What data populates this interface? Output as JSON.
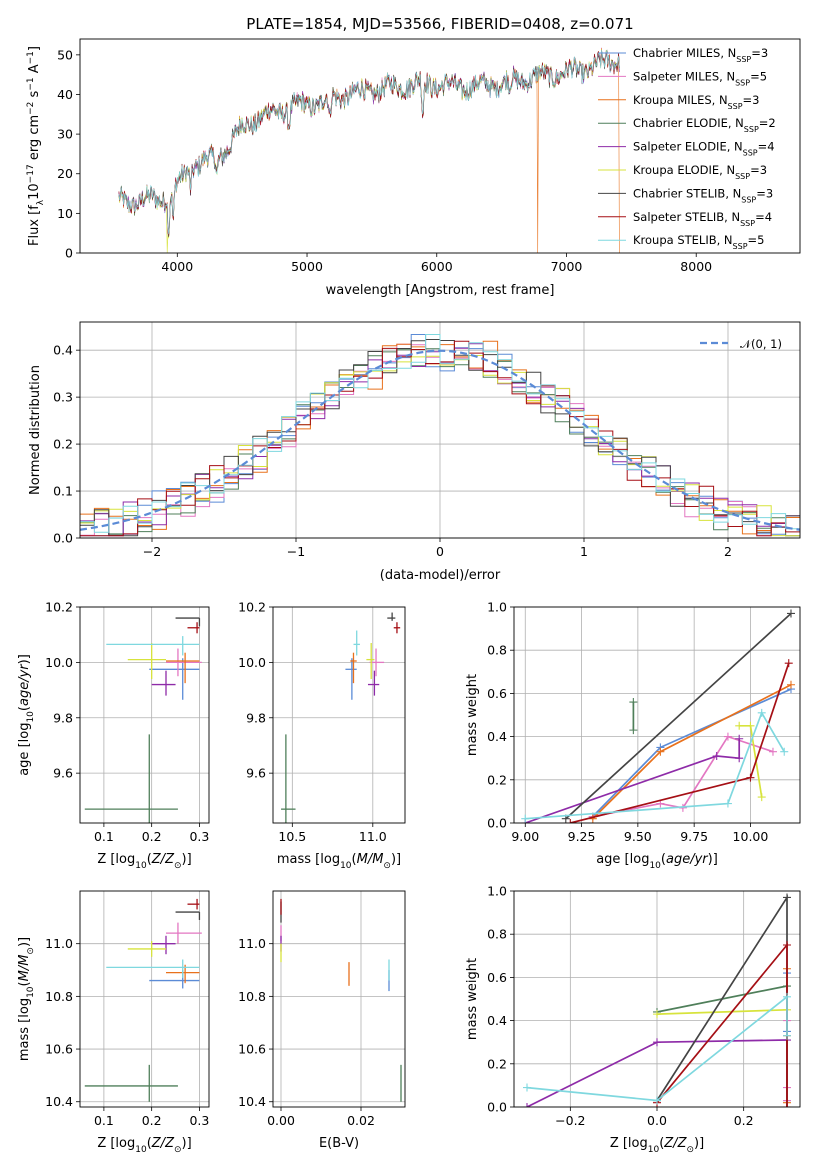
{
  "figure_title": "PLATE=1854, MJD=53566, FIBERID=0408, z=0.071",
  "colors": {
    "chabrier_miles": "#5b8bd6",
    "salpeter_miles": "#e377c2",
    "kroupa_miles": "#e8711c",
    "chabrier_elodie": "#4f7f5a",
    "salpeter_elodie": "#8e2ba8",
    "kroupa_elodie": "#d7e33c",
    "chabrier_stelib": "#444444",
    "salpeter_stelib": "#a50f15",
    "kroupa_stelib": "#7fd8df",
    "gauss": "#5b8bd6"
  },
  "chart_data": [
    {
      "id": "spectrum",
      "type": "line",
      "title": "PLATE=1854, MJD=53566, FIBERID=0408, z=0.071",
      "xlabel": "wavelength [Angstrom, rest frame]",
      "ylabel": "Flux [f_λ 10^-17 erg cm^-2 s^-1 A^-1]",
      "xlim": [
        3250,
        8800
      ],
      "ylim": [
        0,
        54
      ],
      "xticks": [
        "4000",
        "5000",
        "6000",
        "7000",
        "8000"
      ],
      "yticks": [
        "0",
        "10",
        "20",
        "30",
        "40",
        "50"
      ],
      "grid": false,
      "legend": "right",
      "legend_entries": [
        {
          "label": "Chabrier MILES, N",
          "sub": "SSP",
          "rest": "=3"
        },
        {
          "label": "Salpeter MILES, N",
          "sub": "SSP",
          "rest": "=5"
        },
        {
          "label": "Kroupa MILES, N",
          "sub": "SSP",
          "rest": "=3"
        },
        {
          "label": "Chabrier ELODIE, N",
          "sub": "SSP",
          "rest": "=2"
        },
        {
          "label": "Salpeter ELODIE, N",
          "sub": "SSP",
          "rest": "=4"
        },
        {
          "label": "Kroupa ELODIE, N",
          "sub": "SSP",
          "rest": "=3"
        },
        {
          "label": "Chabrier STELIB, N",
          "sub": "SSP",
          "rest": "=3"
        },
        {
          "label": "Salpeter STELIB, N",
          "sub": "SSP",
          "rest": "=4"
        },
        {
          "label": "Kroupa STELIB, N",
          "sub": "SSP",
          "rest": "=5"
        }
      ],
      "continuum_wavelength": [
        3550,
        3700,
        3900,
        4000,
        4100,
        4200,
        4300,
        4400,
        4500,
        4700,
        4900,
        5100,
        5300,
        5500,
        5700,
        5900,
        6100,
        6300,
        6500,
        6700,
        6900,
        7100,
        7300,
        7400
      ],
      "continuum_flux": [
        13,
        13,
        14,
        17,
        22,
        23,
        24,
        27,
        32,
        35,
        37,
        38,
        40,
        41,
        42,
        43,
        42,
        42,
        43,
        44,
        45,
        46,
        48,
        49
      ],
      "absorption_lines": [
        [
          3934,
          9
        ],
        [
          3969,
          8
        ],
        [
          4102,
          5
        ],
        [
          4305,
          4
        ],
        [
          4861,
          4
        ],
        [
          5175,
          6
        ],
        [
          5892,
          9
        ],
        [
          6563,
          3
        ]
      ],
      "drops": [
        {
          "x": 3920,
          "series": "kroupa_elodie"
        },
        {
          "x": 6780,
          "series": "kroupa_miles"
        },
        {
          "x": 7410,
          "series": "kroupa_miles"
        }
      ]
    },
    {
      "id": "residuals",
      "type": "histogram",
      "xlabel": "(data-model)/error",
      "ylabel": "Normed distribution",
      "xlim": [
        -2.5,
        2.5
      ],
      "ylim": [
        0,
        0.46
      ],
      "xticks": [
        "−2",
        "−1",
        "0",
        "1",
        "2"
      ],
      "yticks": [
        "0.0",
        "0.1",
        "0.2",
        "0.3",
        "0.4"
      ],
      "grid": true,
      "legend": "top-right",
      "gauss_label": "𝒩(0, 1)",
      "bin_width": 0.1
    },
    {
      "id": "age_vs_Z",
      "type": "scatter_errorbar",
      "xlabel": "Z [log10(Z/Z☉)]",
      "ylabel": "age [log10(age/yr)]",
      "xlim": [
        0.05,
        0.32
      ],
      "ylim": [
        9.42,
        10.2
      ],
      "xticks": [
        "0.1",
        "0.2",
        "0.3"
      ],
      "yticks": [
        "9.6",
        "9.8",
        "10.0",
        "10.2"
      ],
      "grid": true,
      "points": [
        {
          "s": "chabrier_miles",
          "x": 0.265,
          "y": 9.975,
          "xe": [
            0.07,
            0.035
          ],
          "ye": [
            0.11,
            0.04
          ]
        },
        {
          "s": "salpeter_miles",
          "x": 0.255,
          "y": 10.0,
          "xe": [
            0.025,
            0.05
          ],
          "ye": [
            0.05,
            0.05
          ]
        },
        {
          "s": "kroupa_miles",
          "x": 0.27,
          "y": 10.005,
          "xe": [
            0.04,
            0.03
          ],
          "ye": [
            0.08,
            0.03
          ]
        },
        {
          "s": "chabrier_elodie",
          "x": 0.195,
          "y": 9.47,
          "xe": [
            0.135,
            0.06
          ],
          "ye": [
            0.05,
            0.27
          ]
        },
        {
          "s": "salpeter_elodie",
          "x": 0.23,
          "y": 9.92,
          "xe": [
            0.03,
            0.02
          ],
          "ye": [
            0.04,
            0.05
          ]
        },
        {
          "s": "kroupa_elodie",
          "x": 0.2,
          "y": 10.01,
          "xe": [
            0.05,
            0.03
          ],
          "ye": [
            0.07,
            0.06
          ]
        },
        {
          "s": "chabrier_stelib",
          "x": 0.3,
          "y": 10.16,
          "xe": [
            0.05,
            0.0
          ],
          "ye": [
            0.03,
            0.0
          ]
        },
        {
          "s": "salpeter_stelib",
          "x": 0.295,
          "y": 10.125,
          "xe": [
            0.02,
            0.005
          ],
          "ye": [
            0.02,
            0.02
          ]
        },
        {
          "s": "kroupa_stelib",
          "x": 0.265,
          "y": 10.065,
          "xe": [
            0.16,
            0.035
          ],
          "ye": [
            0.04,
            0.03
          ]
        }
      ]
    },
    {
      "id": "age_vs_mass",
      "type": "scatter_errorbar",
      "xlabel": "mass [log10(M/M☉)]",
      "ylabel": "",
      "xlim": [
        10.38,
        11.2
      ],
      "ylim": [
        9.42,
        10.2
      ],
      "xticks": [
        "10.5",
        "11.0"
      ],
      "yticks": [
        "9.6",
        "9.8",
        "10.0",
        "10.2"
      ],
      "grid": true,
      "points": [
        {
          "s": "chabrier_miles",
          "x": 10.87,
          "y": 9.975,
          "xe": [
            0.04,
            0.03
          ],
          "ye": [
            0.11,
            0.04
          ]
        },
        {
          "s": "salpeter_miles",
          "x": 11.02,
          "y": 10.0,
          "xe": [
            0.04,
            0.05
          ],
          "ye": [
            0.05,
            0.05
          ]
        },
        {
          "s": "kroupa_miles",
          "x": 10.88,
          "y": 10.005,
          "xe": [
            0.02,
            0.02
          ],
          "ye": [
            0.08,
            0.03
          ]
        },
        {
          "s": "chabrier_elodie",
          "x": 10.46,
          "y": 9.47,
          "xe": [
            0.03,
            0.06
          ],
          "ye": [
            0.05,
            0.27
          ]
        },
        {
          "s": "salpeter_elodie",
          "x": 11.01,
          "y": 9.92,
          "xe": [
            0.04,
            0.03
          ],
          "ye": [
            0.04,
            0.05
          ]
        },
        {
          "s": "kroupa_elodie",
          "x": 10.99,
          "y": 10.01,
          "xe": [
            0.03,
            0.02
          ],
          "ye": [
            0.07,
            0.06
          ]
        },
        {
          "s": "chabrier_stelib",
          "x": 11.12,
          "y": 10.16,
          "xe": [
            0.03,
            0.02
          ],
          "ye": [
            0.01,
            0.02
          ]
        },
        {
          "s": "salpeter_stelib",
          "x": 11.15,
          "y": 10.125,
          "xe": [
            0.02,
            0.02
          ],
          "ye": [
            0.02,
            0.02
          ]
        },
        {
          "s": "kroupa_stelib",
          "x": 10.9,
          "y": 10.065,
          "xe": [
            0.02,
            0.02
          ],
          "ye": [
            0.04,
            0.05
          ]
        }
      ]
    },
    {
      "id": "weight_vs_age",
      "type": "line",
      "xlabel": "age [log10(age/yr)]",
      "ylabel": "mass weight",
      "xlim": [
        8.95,
        10.22
      ],
      "ylim": [
        0,
        1
      ],
      "xticks": [
        "9.00",
        "9.25",
        "9.50",
        "9.75",
        "10.00"
      ],
      "yticks": [
        "0.0",
        "0.2",
        "0.4",
        "0.6",
        "0.8",
        "1.0"
      ],
      "grid": true,
      "series": [
        {
          "s": "chabrier_miles",
          "x": [
            9.3,
            9.6,
            10.18
          ],
          "y": [
            0.03,
            0.35,
            0.62
          ]
        },
        {
          "s": "salpeter_miles",
          "x": [
            9.3,
            9.6,
            9.7,
            9.9,
            10.1
          ],
          "y": [
            0.03,
            0.09,
            0.07,
            0.4,
            0.33
          ]
        },
        {
          "s": "kroupa_miles",
          "x": [
            9.3,
            9.6,
            10.18
          ],
          "y": [
            0.02,
            0.33,
            0.64
          ]
        },
        {
          "s": "chabrier_elodie",
          "x": [
            9.48,
            9.48
          ],
          "y": [
            0.43,
            0.56
          ]
        },
        {
          "s": "salpeter_elodie",
          "x": [
            9.0,
            9.85,
            9.95,
            9.95
          ],
          "y": [
            0.0,
            0.31,
            0.3,
            0.39
          ]
        },
        {
          "s": "kroupa_elodie",
          "x": [
            9.95,
            10.0,
            10.05
          ],
          "y": [
            0.45,
            0.45,
            0.12
          ]
        },
        {
          "s": "chabrier_stelib",
          "x": [
            9.18,
            10.18
          ],
          "y": [
            0.02,
            0.97
          ]
        },
        {
          "s": "salpeter_stelib",
          "x": [
            9.2,
            10.0,
            10.17
          ],
          "y": [
            0.0,
            0.21,
            0.74
          ]
        },
        {
          "s": "kroupa_stelib",
          "x": [
            9.0,
            9.9,
            10.05,
            10.15
          ],
          "y": [
            0.02,
            0.09,
            0.51,
            0.33
          ]
        }
      ]
    },
    {
      "id": "mass_vs_Z",
      "type": "scatter_errorbar",
      "xlabel": "Z [log10(Z/Z☉)]",
      "ylabel": "mass [log10(M/M☉)]",
      "xlim": [
        0.05,
        0.32
      ],
      "ylim": [
        10.38,
        11.2
      ],
      "xticks": [
        "0.1",
        "0.2",
        "0.3"
      ],
      "yticks": [
        "10.4",
        "10.6",
        "10.8",
        "11.0"
      ],
      "grid": true,
      "points": [
        {
          "s": "chabrier_miles",
          "x": 0.265,
          "y": 10.86,
          "xe": [
            0.07,
            0.035
          ],
          "ye": [
            0.03,
            0.04
          ]
        },
        {
          "s": "salpeter_miles",
          "x": 0.255,
          "y": 11.04,
          "xe": [
            0.025,
            0.05
          ],
          "ye": [
            0.04,
            0.04
          ]
        },
        {
          "s": "kroupa_miles",
          "x": 0.27,
          "y": 10.89,
          "xe": [
            0.04,
            0.03
          ],
          "ye": [
            0.04,
            0.03
          ]
        },
        {
          "s": "chabrier_elodie",
          "x": 0.195,
          "y": 10.46,
          "xe": [
            0.135,
            0.06
          ],
          "ye": [
            0.06,
            0.08
          ]
        },
        {
          "s": "salpeter_elodie",
          "x": 0.23,
          "y": 11.0,
          "xe": [
            0.03,
            0.02
          ],
          "ye": [
            0.04,
            0.03
          ]
        },
        {
          "s": "kroupa_elodie",
          "x": 0.2,
          "y": 10.98,
          "xe": [
            0.05,
            0.03
          ],
          "ye": [
            0.03,
            0.03
          ]
        },
        {
          "s": "chabrier_stelib",
          "x": 0.3,
          "y": 11.12,
          "xe": [
            0.05,
            0.0
          ],
          "ye": [
            0.03,
            0.0
          ]
        },
        {
          "s": "salpeter_stelib",
          "x": 0.295,
          "y": 11.15,
          "xe": [
            0.02,
            0.005
          ],
          "ye": [
            0.02,
            0.02
          ]
        },
        {
          "s": "kroupa_stelib",
          "x": 0.265,
          "y": 10.91,
          "xe": [
            0.16,
            0.035
          ],
          "ye": [
            0.04,
            0.03
          ]
        }
      ]
    },
    {
      "id": "mass_vs_ebv",
      "type": "scatter_errorbar",
      "xlabel": "E(B-V)",
      "ylabel": "",
      "xlim": [
        -0.002,
        0.031
      ],
      "ylim": [
        10.38,
        11.2
      ],
      "xticks": [
        "0.00",
        "0.02"
      ],
      "yticks": [
        "10.4",
        "10.6",
        "10.8",
        "11.0"
      ],
      "grid": true,
      "points": [
        {
          "s": "chabrier_miles",
          "x": 0.027,
          "y": 10.86,
          "xe": [
            0,
            0
          ],
          "ye": [
            0.04,
            0.04
          ]
        },
        {
          "s": "salpeter_miles",
          "x": 0.0,
          "y": 11.04,
          "xe": [
            0,
            0
          ],
          "ye": [
            0.03,
            0.03
          ]
        },
        {
          "s": "kroupa_miles",
          "x": 0.017,
          "y": 10.89,
          "xe": [
            0,
            0
          ],
          "ye": [
            0.05,
            0.04
          ]
        },
        {
          "s": "chabrier_elodie",
          "x": 0.03,
          "y": 10.47,
          "xe": [
            0,
            0
          ],
          "ye": [
            0.07,
            0.07
          ]
        },
        {
          "s": "salpeter_elodie",
          "x": 0.0,
          "y": 11.0,
          "xe": [
            0,
            0
          ],
          "ye": [
            0.03,
            0.03
          ]
        },
        {
          "s": "kroupa_elodie",
          "x": 0.0,
          "y": 10.97,
          "xe": [
            0,
            0
          ],
          "ye": [
            0.04,
            0.03
          ]
        },
        {
          "s": "chabrier_stelib",
          "x": 0.0,
          "y": 11.12,
          "xe": [
            0,
            0
          ],
          "ye": [
            0.04,
            0.04
          ]
        },
        {
          "s": "salpeter_stelib",
          "x": 0.0,
          "y": 11.14,
          "xe": [
            0,
            0
          ],
          "ye": [
            0.03,
            0.03
          ]
        },
        {
          "s": "kroupa_stelib",
          "x": 0.027,
          "y": 10.9,
          "xe": [
            0,
            0
          ],
          "ye": [
            0.04,
            0.04
          ]
        }
      ]
    },
    {
      "id": "weight_vs_Z",
      "type": "line",
      "xlabel": "Z [log10(Z/Z☉)]",
      "ylabel": "mass weight",
      "xlim": [
        -0.33,
        0.33
      ],
      "ylim": [
        0,
        1
      ],
      "xticks": [
        "−0.2",
        "0.0",
        "0.2"
      ],
      "yticks": [
        "0.0",
        "0.2",
        "0.4",
        "0.6",
        "0.8",
        "1.0"
      ],
      "grid": true,
      "series": [
        {
          "s": "chabrier_miles",
          "x": [
            0.3,
            0.3,
            0.3
          ],
          "y": [
            0.03,
            0.35,
            0.62
          ]
        },
        {
          "s": "salpeter_miles",
          "x": [
            0.3,
            0.3,
            0.3
          ],
          "y": [
            0.03,
            0.09,
            0.4
          ]
        },
        {
          "s": "kroupa_miles",
          "x": [
            0.3,
            0.3,
            0.3
          ],
          "y": [
            0.02,
            0.33,
            0.64
          ]
        },
        {
          "s": "chabrier_elodie",
          "x": [
            0.0,
            0.3
          ],
          "y": [
            0.44,
            0.56
          ]
        },
        {
          "s": "salpeter_elodie",
          "x": [
            -0.3,
            0.0,
            0.3
          ],
          "y": [
            0.0,
            0.3,
            0.31
          ]
        },
        {
          "s": "kroupa_elodie",
          "x": [
            0.0,
            0.3
          ],
          "y": [
            0.43,
            0.45
          ]
        },
        {
          "s": "chabrier_stelib",
          "x": [
            0.0,
            0.3,
            0.3
          ],
          "y": [
            0.03,
            0.97,
            0.0
          ]
        },
        {
          "s": "salpeter_stelib",
          "x": [
            0.0,
            0.3,
            0.3
          ],
          "y": [
            0.02,
            0.75,
            0.0
          ]
        },
        {
          "s": "kroupa_stelib",
          "x": [
            -0.3,
            0.0,
            0.3,
            0.3
          ],
          "y": [
            0.09,
            0.03,
            0.51,
            0.33
          ]
        }
      ]
    }
  ]
}
